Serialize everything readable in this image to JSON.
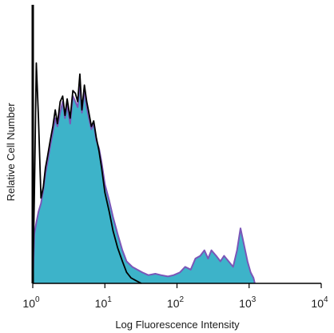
{
  "chart_data": {
    "type": "area",
    "title": "",
    "xlabel": "Log Fluorescence Intensity",
    "ylabel": "Relative Cell Number",
    "x_scale": "log",
    "xlim": [
      1,
      10000
    ],
    "ylim": [
      0,
      1
    ],
    "grid": false,
    "legend": "none",
    "x_ticks": [
      {
        "value": 1,
        "base": "10",
        "exp": "0"
      },
      {
        "value": 10,
        "base": "10",
        "exp": "1"
      },
      {
        "value": 100,
        "base": "10",
        "exp": "2"
      },
      {
        "value": 1000,
        "base": "10",
        "exp": "3"
      },
      {
        "value": 10000,
        "base": "10",
        "exp": "4"
      }
    ],
    "series": [
      {
        "role": "filled-purple-outline",
        "fill": "#3db3c9",
        "stroke": "#7b56b8",
        "x": [
          1.0,
          1.05,
          1.12,
          1.2,
          1.3,
          1.4,
          1.5,
          1.6,
          1.75,
          1.9,
          2.05,
          2.2,
          2.4,
          2.6,
          2.8,
          3.0,
          3.3,
          3.6,
          3.9,
          4.2,
          4.5,
          4.8,
          5.2,
          5.6,
          6.0,
          6.5,
          7.0,
          7.6,
          8.3,
          9.0,
          10.0,
          11.5,
          13.0,
          15.0,
          17.5,
          20.0,
          24.0,
          28.0,
          33.0,
          40.0,
          50.0,
          60.0,
          75.0,
          90.0,
          110.0,
          130.0,
          155.0,
          180.0,
          210.0,
          240.0,
          270.0,
          300.0,
          350.0,
          400.0,
          450.0,
          520.0,
          600.0,
          680.0,
          760.0,
          850.0,
          950.0,
          1050.0,
          1150.0,
          1200.0
        ],
        "y": [
          0.0,
          0.18,
          0.22,
          0.26,
          0.29,
          0.34,
          0.4,
          0.44,
          0.5,
          0.55,
          0.6,
          0.57,
          0.62,
          0.66,
          0.6,
          0.65,
          0.58,
          0.68,
          0.66,
          0.64,
          0.73,
          0.62,
          0.7,
          0.64,
          0.6,
          0.56,
          0.58,
          0.52,
          0.49,
          0.44,
          0.36,
          0.3,
          0.24,
          0.18,
          0.12,
          0.08,
          0.06,
          0.05,
          0.04,
          0.03,
          0.035,
          0.03,
          0.025,
          0.03,
          0.04,
          0.06,
          0.05,
          0.09,
          0.1,
          0.12,
          0.09,
          0.12,
          0.1,
          0.08,
          0.1,
          0.08,
          0.06,
          0.12,
          0.2,
          0.14,
          0.08,
          0.04,
          0.02,
          0.0
        ]
      },
      {
        "role": "black-outline",
        "fill": "none",
        "stroke": "#000000",
        "x": [
          1.0,
          1.05,
          1.12,
          1.2,
          1.3,
          1.4,
          1.5,
          1.6,
          1.75,
          1.9,
          2.05,
          2.2,
          2.4,
          2.6,
          2.8,
          3.0,
          3.3,
          3.6,
          3.9,
          4.2,
          4.5,
          4.8,
          5.2,
          5.6,
          6.0,
          6.5,
          7.0,
          7.6,
          8.3,
          9.0,
          10.0,
          11.5,
          13.0,
          15.0,
          17.5,
          20.0,
          23.0,
          27.0,
          32.0
        ],
        "y": [
          0.0,
          0.3,
          0.8,
          0.6,
          0.31,
          0.35,
          0.42,
          0.46,
          0.52,
          0.57,
          0.63,
          0.58,
          0.66,
          0.68,
          0.61,
          0.67,
          0.6,
          0.7,
          0.69,
          0.66,
          0.76,
          0.63,
          0.72,
          0.66,
          0.62,
          0.57,
          0.59,
          0.53,
          0.48,
          0.42,
          0.33,
          0.26,
          0.19,
          0.13,
          0.08,
          0.04,
          0.02,
          0.01,
          0.0
        ]
      }
    ]
  }
}
